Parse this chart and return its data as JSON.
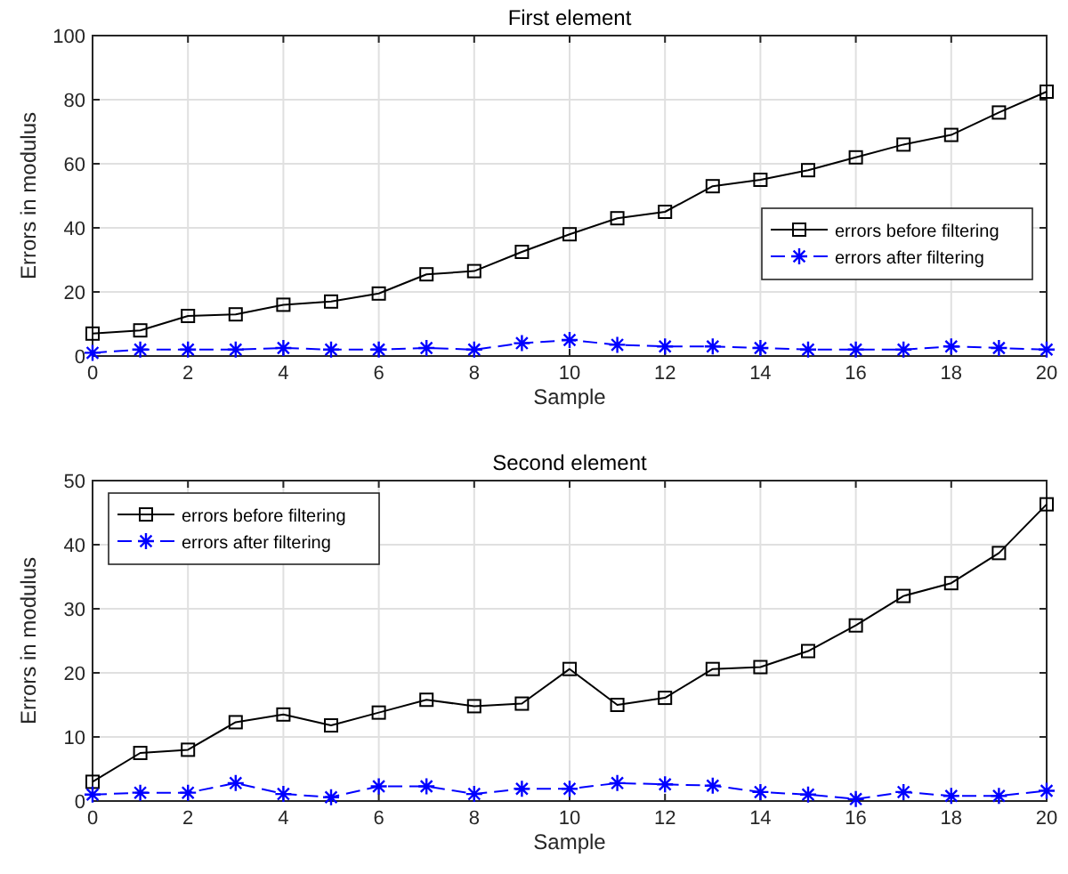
{
  "chart_data": [
    {
      "type": "line",
      "title": "First element",
      "xlabel": "Sample",
      "ylabel": "Errors in modulus",
      "x": [
        0,
        1,
        2,
        3,
        4,
        5,
        6,
        7,
        8,
        9,
        10,
        11,
        12,
        13,
        14,
        15,
        16,
        17,
        18,
        19,
        20
      ],
      "xlim": [
        0,
        20
      ],
      "xticks": [
        0,
        2,
        4,
        6,
        8,
        10,
        12,
        14,
        16,
        18,
        20
      ],
      "ylim": [
        0,
        100
      ],
      "yticks": [
        0,
        20,
        40,
        60,
        80,
        100
      ],
      "grid": true,
      "legend": "right",
      "series": [
        {
          "name": "errors before filtering",
          "color": "#000000",
          "marker": "square",
          "line_style": "solid",
          "values": [
            7,
            8,
            12.5,
            13,
            16,
            17,
            19.5,
            25.5,
            26.5,
            32.5,
            38,
            43,
            45,
            53,
            55,
            58,
            62,
            66,
            69,
            76,
            82.5
          ]
        },
        {
          "name": "errors after filtering",
          "color": "#0000ff",
          "marker": "cross",
          "line_style": "dashed",
          "values": [
            1,
            2,
            2,
            2,
            2.5,
            2,
            2,
            2.5,
            2,
            4,
            5,
            3.5,
            3,
            3,
            2.5,
            2,
            2,
            2,
            3,
            2.5,
            2
          ]
        }
      ]
    },
    {
      "type": "line",
      "title": "Second element",
      "xlabel": "Sample",
      "ylabel": "Errors in modulus",
      "x": [
        0,
        1,
        2,
        3,
        4,
        5,
        6,
        7,
        8,
        9,
        10,
        11,
        12,
        13,
        14,
        15,
        16,
        17,
        18,
        19,
        20
      ],
      "xlim": [
        0,
        20
      ],
      "xticks": [
        0,
        2,
        4,
        6,
        8,
        10,
        12,
        14,
        16,
        18,
        20
      ],
      "ylim": [
        0,
        50
      ],
      "yticks": [
        0,
        10,
        20,
        30,
        40,
        50
      ],
      "grid": true,
      "legend": "top left",
      "series": [
        {
          "name": "errors before filtering",
          "color": "#000000",
          "marker": "square",
          "line_style": "solid",
          "values": [
            3,
            7.5,
            8,
            12.3,
            13.5,
            11.8,
            13.8,
            15.8,
            14.8,
            15.2,
            20.6,
            15,
            16.1,
            20.6,
            20.9,
            23.4,
            27.4,
            32,
            34,
            38.7,
            46.3
          ]
        },
        {
          "name": "errors after filtering",
          "color": "#0000ff",
          "marker": "cross",
          "line_style": "dashed",
          "values": [
            1,
            1.3,
            1.3,
            2.8,
            1.1,
            0.6,
            2.3,
            2.3,
            1.1,
            1.9,
            1.9,
            2.8,
            2.6,
            2.4,
            1.4,
            1,
            0.3,
            1.4,
            0.8,
            0.8,
            1.6
          ]
        }
      ]
    }
  ]
}
